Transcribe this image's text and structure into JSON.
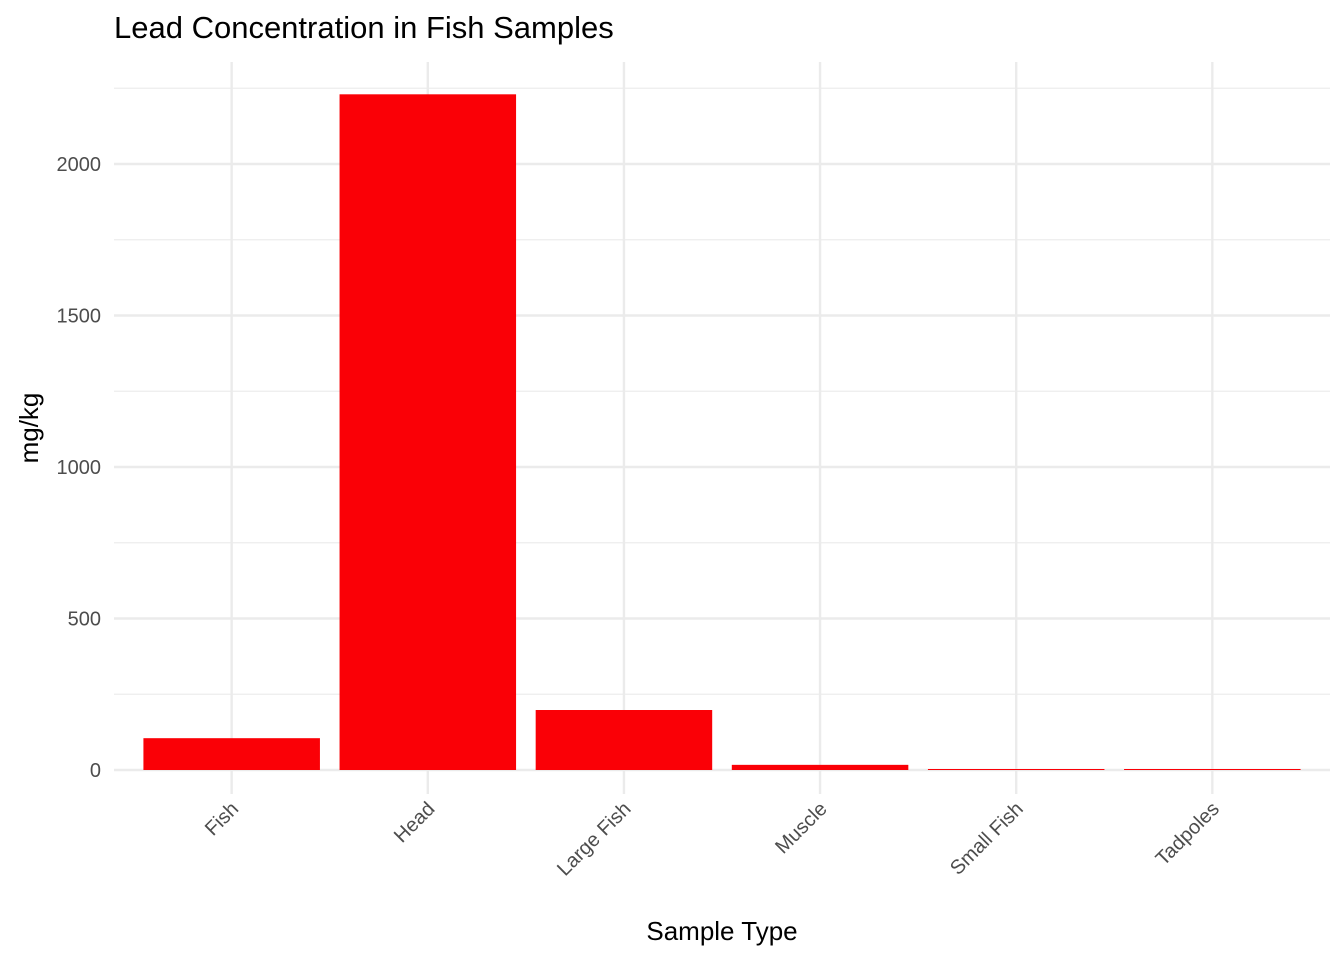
{
  "chart_data": {
    "type": "bar",
    "title": "Lead Concentration in Fish Samples",
    "xlabel": "Sample Type",
    "ylabel": "mg/kg",
    "categories": [
      "Fish",
      "Head",
      "Large Fish",
      "Muscle",
      "Small Fish",
      "Tadpoles"
    ],
    "values": [
      105,
      2230,
      198,
      17,
      2,
      2
    ],
    "ylim": [
      0,
      2330
    ],
    "yticks": [
      0,
      500,
      1000,
      1500,
      2000
    ],
    "bar_color": "#fa0006",
    "grid": true,
    "legend": "none"
  }
}
